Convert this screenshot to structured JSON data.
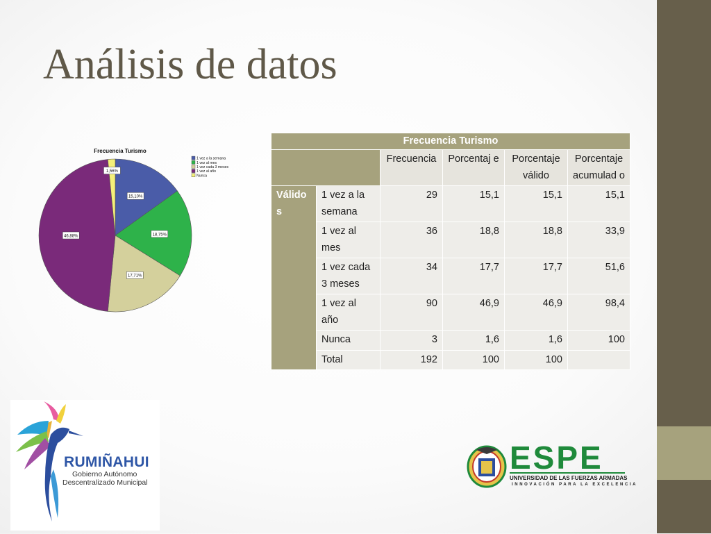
{
  "title": "Análisis de datos",
  "table": {
    "title": "Frecuencia Turismo",
    "headers": [
      "Frecuencia",
      "Porcentaj e",
      "Porcentaje válido",
      "Porcentaje acumulad o"
    ],
    "group_label": "Válido s",
    "rows": [
      {
        "label": "1 vez a la semana",
        "values": [
          "29",
          "15,1",
          "15,1",
          "15,1"
        ]
      },
      {
        "label": "1 vez al mes",
        "values": [
          "36",
          "18,8",
          "18,8",
          "33,9"
        ]
      },
      {
        "label": "1 vez cada 3 meses",
        "values": [
          "34",
          "17,7",
          "17,7",
          "51,6"
        ]
      },
      {
        "label": "1 vez al año",
        "values": [
          "90",
          "46,9",
          "46,9",
          "98,4"
        ]
      },
      {
        "label": "Nunca",
        "values": [
          "3",
          "1,6",
          "1,6",
          "100"
        ]
      },
      {
        "label": "Total",
        "values": [
          "192",
          "100",
          "100",
          ""
        ]
      }
    ]
  },
  "chart_data": {
    "type": "pie",
    "title": "Frecuencia Turismo",
    "categories": [
      "1 vez a la semana",
      "1 vez al mes",
      "1 vez cada 3 meses",
      "1 vez al año",
      "Nunca"
    ],
    "legend_labels": [
      "1 vez a la semana",
      "1 vez al mes",
      "1 vez cada 3 meses",
      "1 vez al año",
      "Nunca"
    ],
    "values": [
      15.1,
      18.75,
      17.71,
      46.88,
      1.56
    ],
    "data_labels": [
      "15,10%",
      "18,75%",
      "17,71%",
      "46,88%",
      "1,56%"
    ],
    "colors": [
      "#4a5ca8",
      "#2eb24a",
      "#d4d09c",
      "#7a2a7a",
      "#f4f07a"
    ],
    "legend_position": "top-right"
  },
  "logos": {
    "rumi_name": "RUMIÑAHUI",
    "rumi_sub1": "Gobierno Autónomo",
    "rumi_sub2": "Descentralizado Municipal",
    "espe_wordmark": "ESPE",
    "espe_university": "UNIVERSIDAD DE LAS FUERZAS ARMADAS",
    "espe_tagline": "INNOVACIÓN PARA LA EXCELENCIA"
  }
}
